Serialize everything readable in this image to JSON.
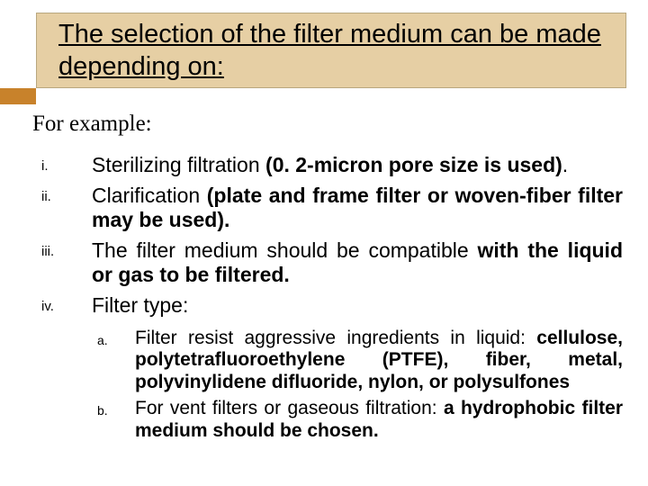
{
  "colors": {
    "header_bg": "#e6cfa4",
    "header_border": "#b9a77f",
    "accent": "#c8822b",
    "page_bg": "#ffffff",
    "text": "#000000"
  },
  "typography": {
    "title_fontsize": 29,
    "example_fontsize": 25,
    "roman_fontsize": 23,
    "roman_marker_fontsize": 15,
    "alpha_fontsize": 21,
    "alpha_marker_fontsize": 14,
    "body_family": "Arial",
    "example_family": "Garamond"
  },
  "header": {
    "title": "The selection of the filter medium can be made depending on:"
  },
  "example_label": "For example:",
  "roman_items": [
    {
      "marker": "i.",
      "plain1": "Sterilizing filtration ",
      "bold": "(0. 2-micron pore size is used)",
      "plain2": "."
    },
    {
      "marker": "ii.",
      "plain1": "Clarification ",
      "bold": "(plate and frame filter or woven-fiber filter may be used).",
      "plain2": ""
    },
    {
      "marker": "iii.",
      "plain1": "The filter medium should be compatible ",
      "bold": "with the liquid or gas to be filtered.",
      "plain2": ""
    },
    {
      "marker": "iv.",
      "plain1": "Filter type:",
      "bold": "",
      "plain2": ""
    }
  ],
  "alpha_items": [
    {
      "marker": "a.",
      "plain1": "Filter resist aggressive ingredients in liquid: ",
      "bold": "cellulose, polytetrafluoroethylene (PTFE), fiber, metal, polyvinylidene difluoride, nylon, or polysulfones",
      "plain2": ""
    },
    {
      "marker": "b.",
      "plain1": "For vent filters or gaseous filtration: ",
      "bold": "a hydrophobic filter medium should be chosen.",
      "plain2": ""
    }
  ]
}
